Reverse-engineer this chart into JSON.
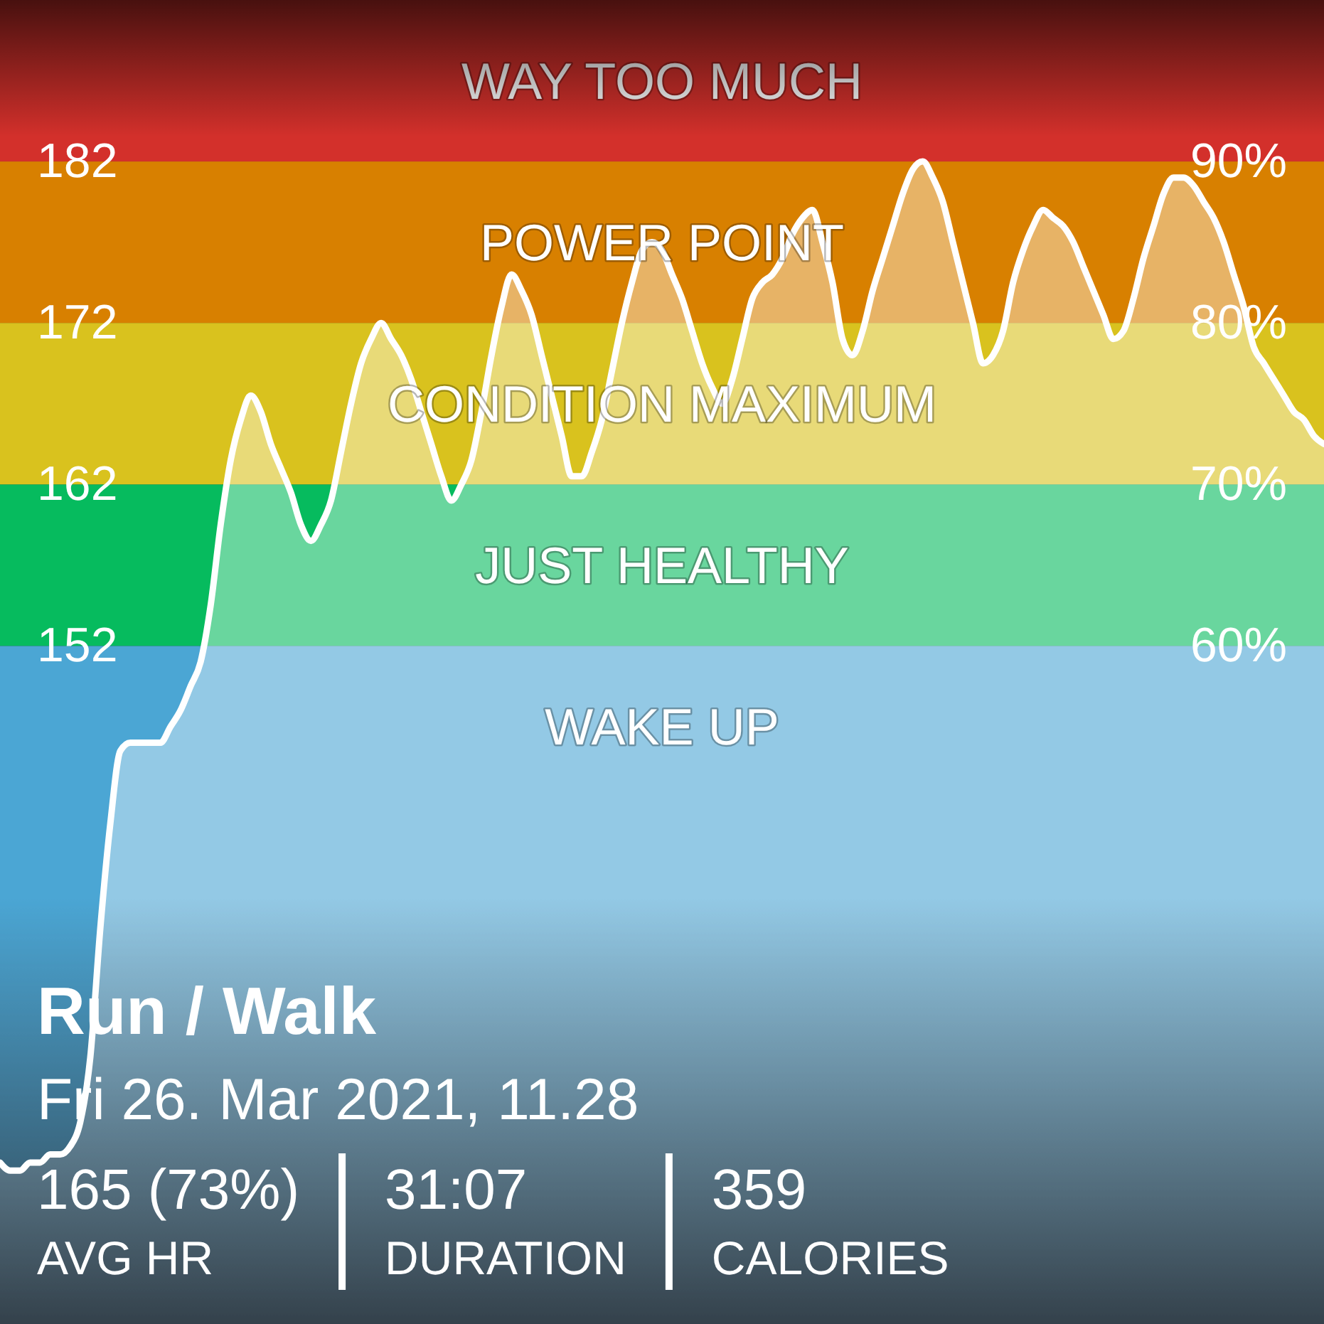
{
  "chart_data": {
    "type": "area",
    "title": "Run / Walk",
    "subtitle": "Fri 26. Mar 2021, 11.28",
    "annotations": [
      "165 (73%)",
      "AVG HR",
      "31:07",
      "DURATION",
      "359",
      "CALORIES"
    ],
    "categories": [
      null,
      null,
      null,
      null,
      null,
      null,
      null,
      null,
      null,
      null,
      null,
      null,
      null,
      null,
      null,
      null,
      null,
      null,
      null,
      null,
      null,
      null,
      null,
      null,
      null,
      null,
      null,
      null,
      null,
      null,
      null,
      null,
      null,
      null,
      null,
      null,
      null,
      null,
      null,
      null,
      null,
      null,
      null,
      null,
      null,
      null,
      null,
      null,
      null,
      null,
      null,
      null,
      null,
      null,
      null,
      null,
      null,
      null,
      null,
      null,
      null,
      null,
      null,
      null,
      null,
      null,
      null,
      null,
      null,
      null,
      null,
      null,
      null,
      null,
      null,
      null,
      null,
      null,
      null,
      null,
      null,
      null,
      null,
      null,
      null,
      null,
      null,
      null,
      null,
      null,
      null,
      null,
      null,
      null,
      null,
      null,
      null,
      null,
      null,
      null,
      null,
      null,
      null,
      null,
      null,
      null,
      null,
      null,
      null,
      null,
      null,
      null,
      null,
      null,
      null,
      null,
      null,
      null,
      null,
      null,
      null,
      null,
      null,
      null,
      null,
      null,
      null,
      null,
      null,
      null,
      null,
      null,
      null
    ],
    "series": [
      {
        "color": "#ffffff",
        "values": [
          120,
          119.5,
          119.5,
          120,
          120,
          120.5,
          120.5,
          121,
          122.5,
          126.5,
          134.5,
          141,
          145.5,
          146,
          146,
          146,
          146,
          147,
          148,
          149.5,
          151,
          154.5,
          159.5,
          163.5,
          166,
          167.5,
          166.5,
          164.5,
          163,
          161.5,
          159.5,
          158.5,
          159.5,
          161,
          164,
          167,
          169.5,
          171,
          172,
          171,
          170,
          168.5,
          166.5,
          164.5,
          162.5,
          161,
          162,
          163.5,
          166.5,
          170,
          173,
          175,
          174,
          172.5,
          170,
          167.5,
          165,
          162.5,
          162.5,
          164,
          166,
          169,
          172,
          174.5,
          176.5,
          177,
          176.5,
          175,
          173.5,
          171.5,
          169.5,
          168,
          167,
          168.5,
          171,
          173.5,
          174.5,
          175,
          176,
          177.5,
          178.5,
          179,
          177,
          174.5,
          171,
          170,
          171.5,
          174,
          176,
          178,
          180,
          181.5,
          182,
          181,
          179.5,
          177,
          174.5,
          172,
          169.5,
          170,
          171.5,
          174.5,
          176.5,
          178,
          179,
          178.5,
          178,
          177,
          175.5,
          174,
          172.5,
          171,
          171.5,
          173.5,
          176,
          178,
          180,
          181,
          181,
          180.5,
          179.5,
          178.5,
          177,
          175,
          173,
          170.5,
          169.5,
          168.5,
          167.5,
          166.5,
          166,
          165,
          164.5
        ]
      }
    ],
    "ylim": [
      110,
      192
    ],
    "yticks": [
      152,
      162,
      172,
      182
    ],
    "y2lim": [
      18,
      100
    ],
    "y2ticks": [
      {
        "value": 60,
        "label": "60%"
      },
      {
        "value": 70,
        "label": "70%"
      },
      {
        "value": 80,
        "label": "80%"
      },
      {
        "value": 90,
        "label": "90%"
      }
    ],
    "bands": [
      {
        "axis": "y",
        "from": 110,
        "to": 152,
        "label": "WAKE UP",
        "color": "#4ba6d4"
      },
      {
        "axis": "y",
        "from": 152,
        "to": 162,
        "label": "JUST HEALTHY",
        "color": "#06bb5e"
      },
      {
        "axis": "y",
        "from": 162,
        "to": 172,
        "label": "CONDITION MAXIMUM",
        "color": "#d9c21e"
      },
      {
        "axis": "y",
        "from": 172,
        "to": 182,
        "label": "POWER POINT",
        "color": "#d88000"
      },
      {
        "axis": "y",
        "from": 182,
        "to": 192,
        "label": "WAY TOO MUCH",
        "color": "#d3302b"
      }
    ]
  }
}
